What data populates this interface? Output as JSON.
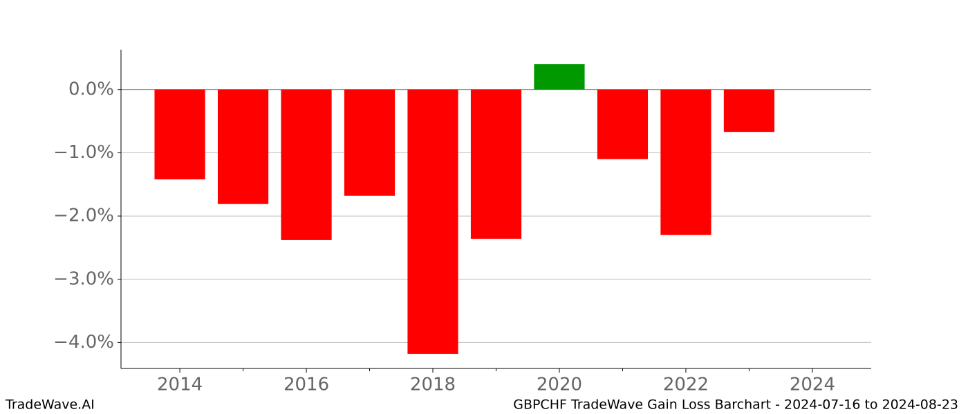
{
  "chart_data": {
    "type": "bar",
    "title": "GBPCHF TradeWave Gain Loss Barchart - 2024-07-16 to 2024-08-23",
    "watermark": "TradeWave.AI",
    "x": [
      2014,
      2015,
      2016,
      2017,
      2018,
      2019,
      2020,
      2021,
      2022,
      2023
    ],
    "values": [
      -1.42,
      -1.81,
      -2.38,
      -1.68,
      -4.18,
      -2.36,
      0.4,
      -1.1,
      -2.3,
      -0.67
    ],
    "positive_color": "#009900",
    "negative_color": "#ff0000",
    "xlim": [
      2013.07,
      2024.93
    ],
    "xticks": [
      2014,
      2016,
      2018,
      2020,
      2022,
      2024
    ],
    "xminorticks": [
      2015,
      2017,
      2019,
      2021,
      2023
    ],
    "ylim": [
      -4.41,
      0.63
    ],
    "yticks": [
      {
        "value": 0,
        "label": "0.0%"
      },
      {
        "value": -1,
        "label": "−1.0%"
      },
      {
        "value": -2,
        "label": "−2.0%"
      },
      {
        "value": -3,
        "label": "−3.0%"
      },
      {
        "value": -4,
        "label": "−4.0%"
      }
    ],
    "grid": true
  }
}
